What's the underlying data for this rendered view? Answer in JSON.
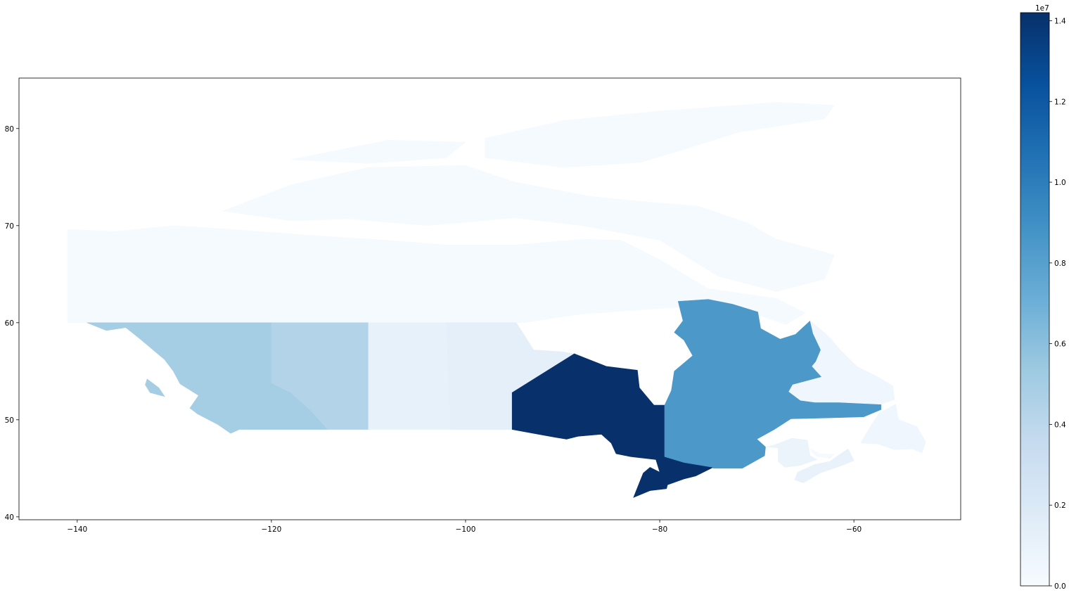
{
  "chart_data": {
    "type": "choropleth",
    "title": "",
    "xlabel": "",
    "ylabel": "",
    "xlim": [
      -146,
      -49
    ],
    "ylim": [
      39.7,
      85.2
    ],
    "x_ticks": [
      -140,
      -120,
      -100,
      -80,
      -60
    ],
    "x_tick_labels": [
      "−140",
      "−120",
      "−100",
      "−80",
      "−60"
    ],
    "y_ticks": [
      40,
      50,
      60,
      70,
      80
    ],
    "y_tick_labels": [
      "40",
      "50",
      "60",
      "70",
      "80"
    ],
    "grid": false,
    "colormap": "Blues",
    "colorbar": {
      "vmin": 0,
      "vmax": 14200000,
      "ticks": [
        0,
        2000000,
        4000000,
        6000000,
        8000000,
        10000000,
        12000000,
        14000000
      ],
      "tick_labels": [
        "0.0",
        "0.2",
        "0.4",
        "0.6",
        "0.8",
        "1.0",
        "1.2",
        "1.4"
      ],
      "offset_label": "1e7",
      "stops": [
        "#f7fbff",
        "#deebf7",
        "#c6dbef",
        "#9ecae1",
        "#6baed6",
        "#4292c6",
        "#2171b5",
        "#08519c",
        "#08306b"
      ]
    },
    "regions": [
      {
        "id": "territories",
        "value": 130000
      },
      {
        "id": "british-columbia",
        "value": 5000000
      },
      {
        "id": "alberta",
        "value": 4400000
      },
      {
        "id": "saskatchewan",
        "value": 1150000
      },
      {
        "id": "manitoba",
        "value": 1350000
      },
      {
        "id": "ontario",
        "value": 14200000
      },
      {
        "id": "quebec",
        "value": 8500000
      },
      {
        "id": "newfoundland-and-labrador",
        "value": 520000
      },
      {
        "id": "new-brunswick",
        "value": 780000
      },
      {
        "id": "nova-scotia",
        "value": 970000
      },
      {
        "id": "prince-edward-island",
        "value": 160000
      }
    ]
  }
}
